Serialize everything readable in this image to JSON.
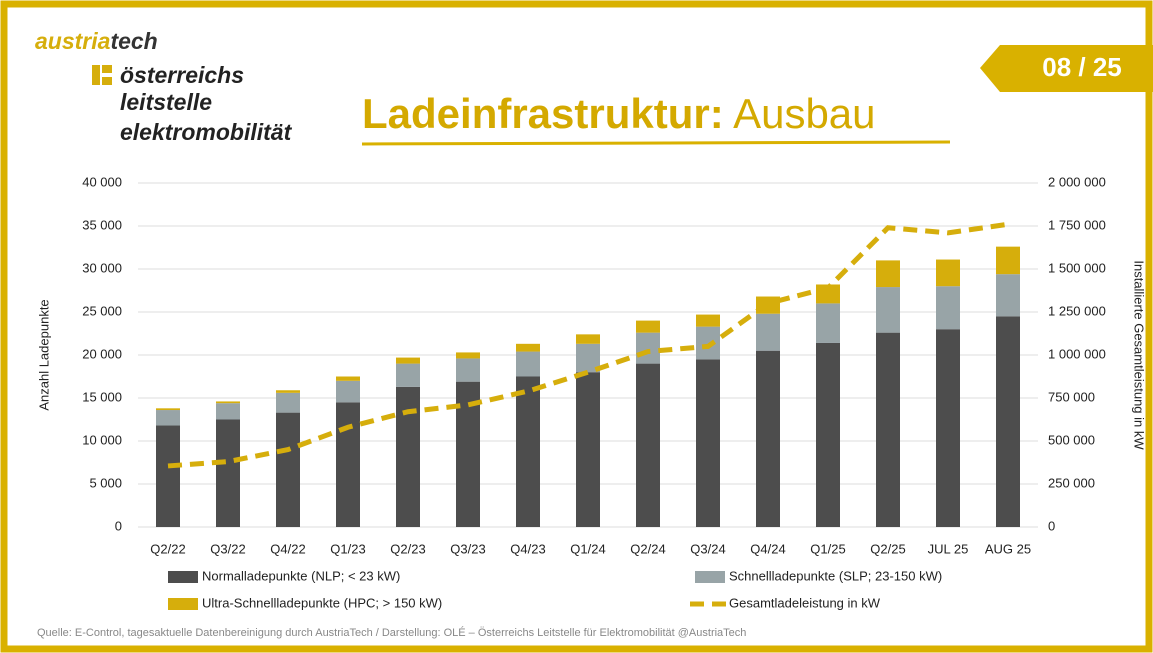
{
  "logo": {
    "brand_a": "austria",
    "brand_b": "tech",
    "lines": [
      "österreichs",
      "leitstelle",
      "elektromobilität"
    ]
  },
  "page_number": "08 / 25",
  "heading": {
    "bold": "Ladeinfrastruktur:",
    "light": "Ausbau"
  },
  "source": "Quelle: E-Control, tagesaktuelle Datenbereinigung durch AustriaTech / Darstellung: OLÉ – Österreichs Leitstelle für Elektromobilität @AustriaTech",
  "chart_data": {
    "type": "bar",
    "stacked": true,
    "ylabel": "Anzahl Ladepunkte",
    "y2label": "Installierte Gesamtleistung in kW",
    "categories": [
      "Q2/22",
      "Q3/22",
      "Q4/22",
      "Q1/23",
      "Q2/23",
      "Q3/23",
      "Q4/23",
      "Q1/24",
      "Q2/24",
      "Q3/24",
      "Q4/24",
      "Q1/25",
      "Q2/25",
      "JUL 25",
      "AUG 25"
    ],
    "series": [
      {
        "name": "Normalladepunkte (NLP; < 23 kW)",
        "color": "#4d4d4d",
        "values": [
          11800,
          12500,
          13300,
          14500,
          16300,
          16900,
          17500,
          18000,
          19000,
          19500,
          20500,
          21400,
          22600,
          23000,
          24500
        ]
      },
      {
        "name": "Schnellladepunkte (SLP; 23-150 kW)",
        "color": "#98a4a7",
        "values": [
          1800,
          1900,
          2300,
          2500,
          2700,
          2700,
          2900,
          3300,
          3600,
          3800,
          4300,
          4600,
          5300,
          5000,
          4900
        ]
      },
      {
        "name": "Ultra-Schnellladepunkte (HPC; > 150 kW)",
        "color": "#d6ae0c",
        "values": [
          200,
          200,
          300,
          500,
          700,
          700,
          900,
          1100,
          1400,
          1400,
          2000,
          2200,
          3100,
          3100,
          3200
        ]
      },
      {
        "name": "Gesamtladeleistung in kW",
        "color": "#d6ae0c",
        "type": "line",
        "axis": "y2",
        "values": [
          355000,
          380000,
          450000,
          580000,
          670000,
          710000,
          790000,
          900000,
          1020000,
          1050000,
          1300000,
          1390000,
          1740000,
          1710000,
          1760000
        ]
      }
    ],
    "ylim": [
      0,
      40000
    ],
    "yticks": [
      0,
      {
        "value": 5000,
        "label": "5 000"
      },
      {
        "value": 10000,
        "label": "10 000"
      },
      {
        "value": 15000,
        "label": "15 000"
      },
      {
        "value": 20000,
        "label": "20 000"
      },
      {
        "value": 25000,
        "label": "25 000"
      },
      {
        "value": 30000,
        "label": "30 000"
      },
      {
        "value": 35000,
        "label": "35 000"
      },
      {
        "value": 40000,
        "label": "40 000"
      }
    ],
    "y2lim": [
      0,
      2000000
    ],
    "y2ticks": [
      0,
      {
        "value": 250000,
        "label": "250 000"
      },
      {
        "value": 500000,
        "label": "500 000"
      },
      {
        "value": 750000,
        "label": "750 000"
      },
      {
        "value": 1000000,
        "label": "1 000 000"
      },
      {
        "value": 1250000,
        "label": "1 250 000"
      },
      {
        "value": 1500000,
        "label": "1 500 000"
      },
      {
        "value": 1750000,
        "label": "1 750 000"
      },
      {
        "value": 2000000,
        "label": "2 000 000"
      }
    ],
    "grid": true
  }
}
